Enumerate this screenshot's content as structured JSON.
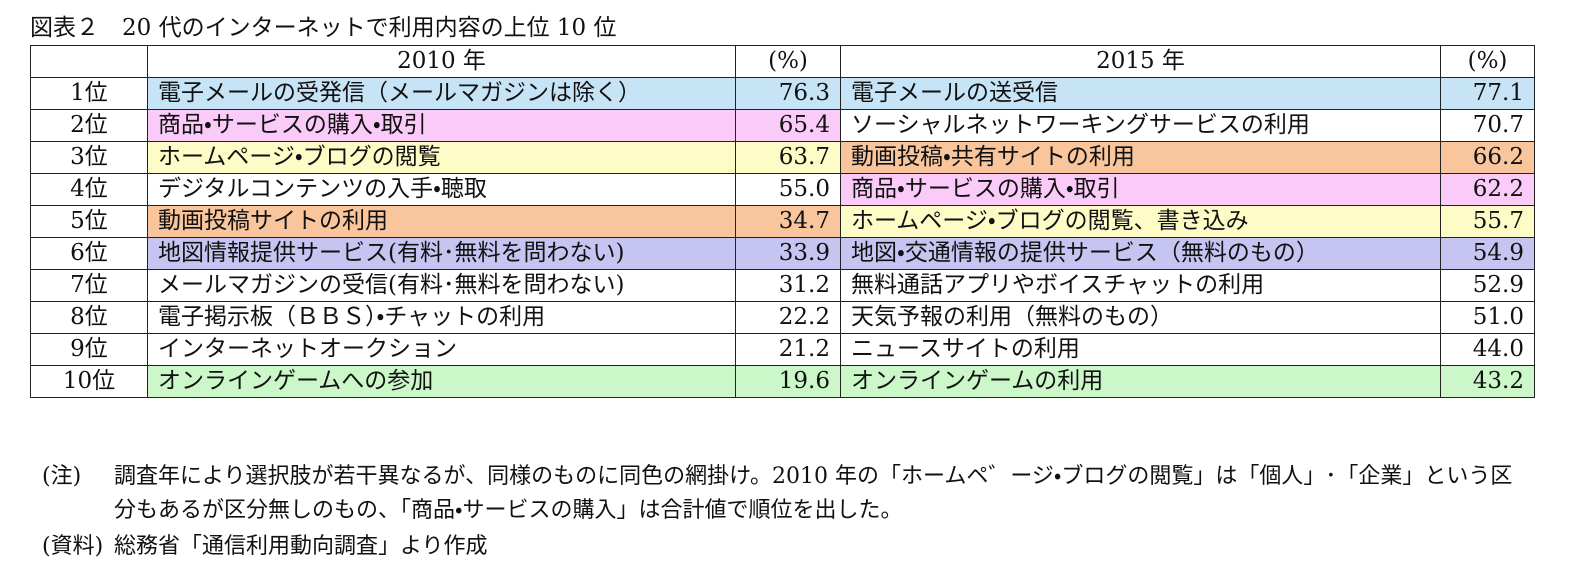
{
  "title": "図表２　20 代のインターネットで利用内容の上位 10 位",
  "table": {
    "header": [
      "2010 年",
      "(%)",
      "2015 年",
      "(%)"
    ],
    "rows": [
      {
        "rank": "1位",
        "item_2010": "電子メールの受発信（メールマガジンは除く）",
        "pct_2010": "76.3",
        "color_2010": "#c6e4f6",
        "item_2015": "電子メールの送受信",
        "pct_2015": "77.1",
        "color_2015": "#c6e4f6"
      },
      {
        "rank": "2位",
        "item_2010": "商品・サービスの購入・取引",
        "pct_2010": "65.4",
        "color_2010": "#facbf8",
        "item_2015": "ソーシャルネットワーキングサービスの利用",
        "pct_2015": "70.7"
      },
      {
        "rank": "3位",
        "item_2010": "ホームページ・ブログの閲覧",
        "pct_2010": "63.7",
        "color_2010": "#fdfcc6",
        "item_2015": "動画投稿・共有サイトの利用",
        "pct_2015": "66.2",
        "color_2015": "#f8c59d"
      },
      {
        "rank": "4位",
        "item_2010": "デジタルコンテンツの入手・聴取",
        "pct_2010": "55.0",
        "item_2015": "商品・サービスの購入・取引",
        "pct_2015": "62.2",
        "color_2015": "#facbf8"
      },
      {
        "rank": "5位",
        "item_2010": "動画投稿サイトの利用",
        "pct_2010": "34.7",
        "color_2010": "#f8c59d",
        "item_2015": "ホームページ・ブログの閲覧、書き込み",
        "pct_2015": "55.7",
        "color_2015": "#fdfcc6"
      },
      {
        "rank": "6位",
        "item_2010": "地図情報提供サービス(有料･無料を問わない)",
        "pct_2010": "33.9",
        "color_2010": "#c6c5f1",
        "item_2015": "地図・交通情報の提供サービス（無料のもの）",
        "pct_2015": "54.9",
        "color_2015": "#c6c5f1"
      },
      {
        "rank": "7位",
        "item_2010": "メールマガジンの受信(有料･無料を問わない)",
        "pct_2010": "31.2",
        "item_2015": "無料通話アプリやボイスチャットの利用",
        "pct_2015": "52.9"
      },
      {
        "rank": "8位",
        "item_2010": "電子掲示板（ＢＢＳ）・チャットの利用",
        "pct_2010": "22.2",
        "item_2015": "天気予報の利用（無料のもの）",
        "pct_2015": "51.0"
      },
      {
        "rank": "9位",
        "item_2010": "インターネットオークション",
        "pct_2010": "21.2",
        "item_2015": "ニュースサイトの利用",
        "pct_2015": "44.0"
      },
      {
        "rank": "10位",
        "item_2010": "オンラインゲームへの参加",
        "pct_2010": "19.6",
        "color_2010": "#cbf7c9",
        "item_2015": "オンラインゲームの利用",
        "pct_2015": "43.2",
        "color_2015": "#cbf7c9"
      }
    ]
  },
  "note": {
    "label": "(注)",
    "text": "調査年により選択肢が若干異なるが、同様のものに同色の網掛け。2010 年の「ホームペ゛ージ・ブログの閲覧」は「個人」･「企業」という区分もあるが区分無しのもの、「商品・サービスの購入」は合計値で順位を出した。"
  },
  "source": {
    "label": "(資料)",
    "text": "総務省「通信利用動向調査」より作成"
  }
}
